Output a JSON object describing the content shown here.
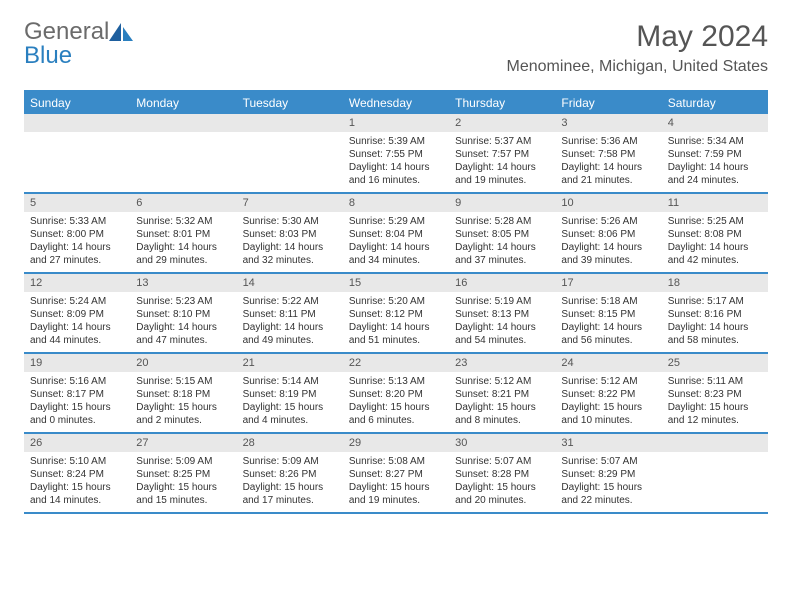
{
  "logo": {
    "text1": "General",
    "text2": "Blue"
  },
  "title": "May 2024",
  "location": "Menominee, Michigan, United States",
  "colors": {
    "header_bg": "#3a8bc9",
    "header_text": "#ffffff",
    "daynum_bg": "#e8e8e8",
    "body_text": "#333333",
    "rule": "#3a8bc9"
  },
  "fonts": {
    "title_pt": 30,
    "location_pt": 16,
    "dow_pt": 12,
    "cell_pt": 10
  },
  "days_of_week": [
    "Sunday",
    "Monday",
    "Tuesday",
    "Wednesday",
    "Thursday",
    "Friday",
    "Saturday"
  ],
  "first_weekday": 3,
  "num_days": 31,
  "days": {
    "1": {
      "sunrise": "5:39 AM",
      "sunset": "7:55 PM",
      "daylight": "14 hours and 16 minutes."
    },
    "2": {
      "sunrise": "5:37 AM",
      "sunset": "7:57 PM",
      "daylight": "14 hours and 19 minutes."
    },
    "3": {
      "sunrise": "5:36 AM",
      "sunset": "7:58 PM",
      "daylight": "14 hours and 21 minutes."
    },
    "4": {
      "sunrise": "5:34 AM",
      "sunset": "7:59 PM",
      "daylight": "14 hours and 24 minutes."
    },
    "5": {
      "sunrise": "5:33 AM",
      "sunset": "8:00 PM",
      "daylight": "14 hours and 27 minutes."
    },
    "6": {
      "sunrise": "5:32 AM",
      "sunset": "8:01 PM",
      "daylight": "14 hours and 29 minutes."
    },
    "7": {
      "sunrise": "5:30 AM",
      "sunset": "8:03 PM",
      "daylight": "14 hours and 32 minutes."
    },
    "8": {
      "sunrise": "5:29 AM",
      "sunset": "8:04 PM",
      "daylight": "14 hours and 34 minutes."
    },
    "9": {
      "sunrise": "5:28 AM",
      "sunset": "8:05 PM",
      "daylight": "14 hours and 37 minutes."
    },
    "10": {
      "sunrise": "5:26 AM",
      "sunset": "8:06 PM",
      "daylight": "14 hours and 39 minutes."
    },
    "11": {
      "sunrise": "5:25 AM",
      "sunset": "8:08 PM",
      "daylight": "14 hours and 42 minutes."
    },
    "12": {
      "sunrise": "5:24 AM",
      "sunset": "8:09 PM",
      "daylight": "14 hours and 44 minutes."
    },
    "13": {
      "sunrise": "5:23 AM",
      "sunset": "8:10 PM",
      "daylight": "14 hours and 47 minutes."
    },
    "14": {
      "sunrise": "5:22 AM",
      "sunset": "8:11 PM",
      "daylight": "14 hours and 49 minutes."
    },
    "15": {
      "sunrise": "5:20 AM",
      "sunset": "8:12 PM",
      "daylight": "14 hours and 51 minutes."
    },
    "16": {
      "sunrise": "5:19 AM",
      "sunset": "8:13 PM",
      "daylight": "14 hours and 54 minutes."
    },
    "17": {
      "sunrise": "5:18 AM",
      "sunset": "8:15 PM",
      "daylight": "14 hours and 56 minutes."
    },
    "18": {
      "sunrise": "5:17 AM",
      "sunset": "8:16 PM",
      "daylight": "14 hours and 58 minutes."
    },
    "19": {
      "sunrise": "5:16 AM",
      "sunset": "8:17 PM",
      "daylight": "15 hours and 0 minutes."
    },
    "20": {
      "sunrise": "5:15 AM",
      "sunset": "8:18 PM",
      "daylight": "15 hours and 2 minutes."
    },
    "21": {
      "sunrise": "5:14 AM",
      "sunset": "8:19 PM",
      "daylight": "15 hours and 4 minutes."
    },
    "22": {
      "sunrise": "5:13 AM",
      "sunset": "8:20 PM",
      "daylight": "15 hours and 6 minutes."
    },
    "23": {
      "sunrise": "5:12 AM",
      "sunset": "8:21 PM",
      "daylight": "15 hours and 8 minutes."
    },
    "24": {
      "sunrise": "5:12 AM",
      "sunset": "8:22 PM",
      "daylight": "15 hours and 10 minutes."
    },
    "25": {
      "sunrise": "5:11 AM",
      "sunset": "8:23 PM",
      "daylight": "15 hours and 12 minutes."
    },
    "26": {
      "sunrise": "5:10 AM",
      "sunset": "8:24 PM",
      "daylight": "15 hours and 14 minutes."
    },
    "27": {
      "sunrise": "5:09 AM",
      "sunset": "8:25 PM",
      "daylight": "15 hours and 15 minutes."
    },
    "28": {
      "sunrise": "5:09 AM",
      "sunset": "8:26 PM",
      "daylight": "15 hours and 17 minutes."
    },
    "29": {
      "sunrise": "5:08 AM",
      "sunset": "8:27 PM",
      "daylight": "15 hours and 19 minutes."
    },
    "30": {
      "sunrise": "5:07 AM",
      "sunset": "8:28 PM",
      "daylight": "15 hours and 20 minutes."
    },
    "31": {
      "sunrise": "5:07 AM",
      "sunset": "8:29 PM",
      "daylight": "15 hours and 22 minutes."
    }
  },
  "labels": {
    "sunrise": "Sunrise: ",
    "sunset": "Sunset: ",
    "daylight": "Daylight: "
  }
}
